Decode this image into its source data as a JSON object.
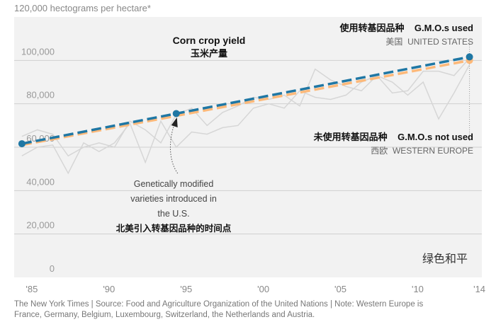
{
  "chart_data": {
    "type": "line",
    "ylabel": "120,000 hectograms per hectare*",
    "ylim": [
      0,
      120000
    ],
    "xlim": [
      1984.5,
      2014.8
    ],
    "yticks": [
      "0",
      "20,000",
      "40,000",
      "60,000",
      "80,000",
      "100,000"
    ],
    "ytick_values": [
      0,
      20000,
      40000,
      60000,
      80000,
      100000
    ],
    "xticks": [
      "'85",
      "'90",
      "'95",
      "'00",
      "'05",
      "'10",
      "'14"
    ],
    "xtick_values": [
      1985,
      1990,
      1995,
      2000,
      2005,
      2010,
      2014
    ],
    "grid": true,
    "title": "Corn crop yield",
    "title_cn": "玉米产量",
    "series": [
      {
        "name": "G.M.O.s used",
        "name_cn": "使用转基因品种",
        "region": "UNITED STATES",
        "region_cn": "美国",
        "color": "#1f77a4",
        "style": "dashed-trend",
        "x": [
          1985,
          1995,
          2014
        ],
        "y": [
          61600,
          75500,
          101600
        ]
      },
      {
        "name": "G.M.O.s not used",
        "name_cn": "未使用转基因品种",
        "region": "WESTERN EUROPE",
        "region_cn": "西欧",
        "color": "#fdb97a",
        "style": "dashed-trend",
        "x": [
          1985,
          2014
        ],
        "y": [
          61000,
          100000
        ]
      },
      {
        "color": "#d6d6d6",
        "style": "raw",
        "x": [
          1985,
          1986,
          1987,
          1988,
          1989,
          1990,
          1991,
          1992,
          1993,
          1994,
          1995,
          1996,
          1997,
          1998,
          1999,
          2000,
          2001,
          2002,
          2003,
          2004,
          2005,
          2006,
          2007,
          2008,
          2009,
          2010,
          2011,
          2012,
          2013,
          2014
        ],
        "y": [
          56000,
          60000,
          61000,
          48000,
          62000,
          58000,
          62000,
          71000,
          53000,
          72000,
          60000,
          67000,
          66000,
          69000,
          70000,
          78000,
          80000,
          78000,
          86000,
          83000,
          82000,
          84000,
          90000,
          93000,
          90000,
          84000,
          90000,
          73000,
          85000,
          98000
        ]
      },
      {
        "color": "#d6d6d6",
        "style": "raw",
        "x": [
          1985,
          1986,
          1987,
          1988,
          1989,
          1990,
          1991,
          1992,
          1993,
          1994,
          1995,
          1996,
          1997,
          1998,
          1999,
          2000,
          2001,
          2002,
          2003,
          2004,
          2005,
          2006,
          2007,
          2008,
          2009,
          2010,
          2011,
          2012,
          2013,
          2014
        ],
        "y": [
          65000,
          68000,
          66000,
          56000,
          60000,
          62000,
          60000,
          72000,
          68000,
          62000,
          75000,
          78000,
          70000,
          76000,
          79000,
          83000,
          82000,
          84000,
          79000,
          96000,
          91000,
          88000,
          86000,
          93000,
          85000,
          86000,
          95000,
          95000,
          93000,
          101000
        ]
      }
    ],
    "annotation": {
      "lines": [
        "Genetically modified",
        "varieties introduced in",
        "the U.S."
      ],
      "cn": "北美引入转基因品种的时间点",
      "x": 1995
    }
  },
  "footer": {
    "line1": "The New York Times | Source: Food and Agriculture Organization of the United Nations | Note: Western Europe is",
    "line2": "France, Germany, Belgium, Luxembourg, Switzerland, the Netherlands and Austria."
  },
  "watermark": "绿色和平"
}
